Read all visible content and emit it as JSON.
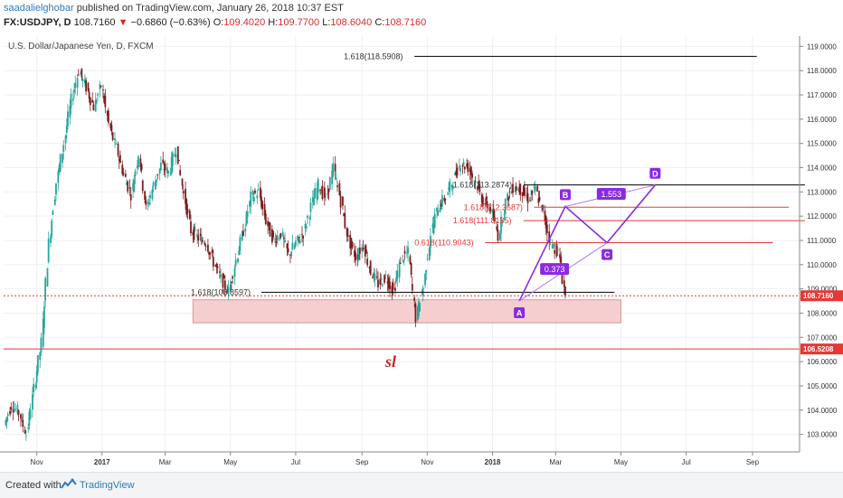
{
  "header": {
    "author": "saadalielghobar",
    "published_text": "published on TradingView.com, January 26, 2018 10:37 EST",
    "symbol": "FX:USDJPY, D",
    "last": "108.7160",
    "change": "−0.6860 (−0.63%)",
    "open_label": "O:",
    "open": "109.4020",
    "high_label": "H:",
    "high": "109.7700",
    "low_label": "L:",
    "low": "108.6040",
    "close_label": "C:",
    "close": "108.7160"
  },
  "footer": {
    "created_with": "Created with",
    "brand": "TradingView",
    "logo_icon": "tradingview-logo-icon"
  },
  "chart_data": {
    "type": "candlestick",
    "title": "U.S. Dollar/Japanese Yen, D, FXCM",
    "ylim": [
      102.5,
      119.2
    ],
    "yticks": [
      "103.0000",
      "104.0000",
      "105.0000",
      "106.0000",
      "107.0000",
      "108.0000",
      "109.0000",
      "110.0000",
      "111.0000",
      "112.0000",
      "113.0000",
      "114.0000",
      "115.0000",
      "116.0000",
      "117.0000",
      "118.0000",
      "119.0000"
    ],
    "xticks": [
      "Nov",
      "2017",
      "Mar",
      "May",
      "Jul",
      "Sep",
      "Nov",
      "2018",
      "Mar",
      "May",
      "Jul",
      "Sep"
    ],
    "price_tags": [
      {
        "value": 108.716,
        "label": "108.7160",
        "color": "#e53935"
      },
      {
        "value": 106.5208,
        "label": "106.5208",
        "color": "#e53935"
      }
    ],
    "support_zone": {
      "from": "2017-03-27",
      "to": "2018-05-01",
      "low": 107.6,
      "high": 108.55,
      "color": "#f4c7c7"
    },
    "stop_loss_label": "sl",
    "colors": {
      "up": "#26a69a",
      "down": "#7b1e1e",
      "fib_black": "#000000",
      "fib_red": "#e53935",
      "pattern": "#8a2be2"
    },
    "fib_levels": [
      {
        "label": "1.618(118.5908)",
        "value": 118.5908,
        "color": "#000000",
        "from": "2017-08-15",
        "to": "2018-09-05"
      },
      {
        "label": "1.618(113.2874)",
        "value": 113.2874,
        "color": "#000000",
        "from": "2017-11-25",
        "to": "2018-10-20"
      },
      {
        "label": "1.618(112.3687)",
        "value": 112.3687,
        "color": "#e53935",
        "from": "2017-12-05",
        "to": "2018-10-05"
      },
      {
        "label": "1.618(111.8135)",
        "value": 111.8135,
        "color": "#e53935",
        "from": "2017-11-25",
        "to": "2018-10-20"
      },
      {
        "label": "0.618(110.9043)",
        "value": 110.9043,
        "color": "#e53935",
        "from": "2017-10-20",
        "to": "2018-09-20"
      },
      {
        "label": "1.618(108.8597)",
        "value": 108.8597,
        "color": "#000000",
        "from": "2017-03-25",
        "to": "2018-04-25"
      }
    ],
    "pattern_points": [
      {
        "label": "A",
        "date": "2018-01-26",
        "value": 108.5
      },
      {
        "label": "B",
        "date": "2018-03-10",
        "value": 112.4
      },
      {
        "label": "C",
        "date": "2018-04-18",
        "value": 110.9
      },
      {
        "label": "D",
        "date": "2018-06-02",
        "value": 113.28
      }
    ],
    "ratio_labels": [
      {
        "label": "0.373",
        "date": "2018-02-28",
        "value": 109.8
      },
      {
        "label": "1.553",
        "date": "2018-04-22",
        "value": 112.9
      }
    ],
    "ohlc_daily_closes": {
      "start_date": "2016-10-03",
      "step_days": 7,
      "note_source": "weekly closing levels read from chart",
      "closes": [
        103.4,
        104.2,
        103.9,
        103.0,
        104.9,
        106.8,
        110.9,
        113.4,
        115.0,
        116.8,
        118.0,
        117.3,
        116.5,
        117.4,
        115.8,
        114.8,
        113.7,
        112.9,
        114.6,
        112.3,
        113.3,
        114.1,
        113.8,
        114.8,
        112.9,
        111.4,
        111.1,
        110.9,
        110.1,
        109.4,
        108.9,
        110.2,
        111.4,
        112.8,
        113.0,
        111.8,
        111.0,
        111.3,
        110.4,
        110.9,
        111.3,
        112.4,
        113.3,
        112.7,
        114.0,
        112.6,
        111.0,
        110.3,
        110.8,
        109.7,
        109.2,
        109.5,
        108.9,
        110.2,
        110.5,
        107.8,
        109.1,
        111.3,
        112.4,
        112.8,
        113.5,
        114.2,
        114.0,
        113.4,
        112.6,
        112.3,
        111.2,
        112.6,
        113.2,
        113.1,
        112.7,
        113.1,
        112.1,
        110.9,
        110.5,
        108.7
      ]
    }
  }
}
